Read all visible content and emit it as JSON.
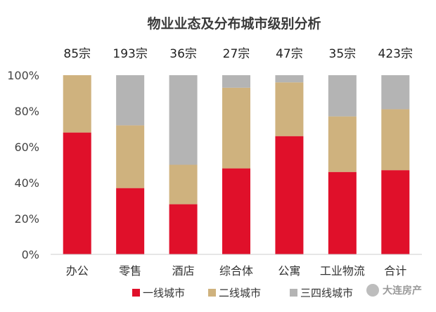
{
  "chart_data": {
    "type": "bar",
    "stacked": true,
    "percent": true,
    "title": "物业业态及分布城市级别分析",
    "categories": [
      "办公",
      "零售",
      "酒店",
      "综合体",
      "公寓",
      "工业物流",
      "合计"
    ],
    "totals": [
      "85宗",
      "193宗",
      "36宗",
      "27宗",
      "47宗",
      "35宗",
      "423宗"
    ],
    "yticks": [
      "0%",
      "20%",
      "40%",
      "60%",
      "80%",
      "100%"
    ],
    "ylim": [
      0,
      100
    ],
    "grid": false,
    "legend_position": "bottom",
    "series": [
      {
        "name": "一线城市",
        "color": "#e0102a",
        "values": [
          68,
          37,
          28,
          48,
          66,
          46,
          47
        ]
      },
      {
        "name": "二线城市",
        "color": "#cfb27e",
        "values": [
          32,
          35,
          22,
          45,
          30,
          31,
          34
        ]
      },
      {
        "name": "三四线城市",
        "color": "#b4b4b4",
        "values": [
          0,
          28,
          50,
          7,
          4,
          23,
          19
        ]
      }
    ]
  },
  "watermark": {
    "brand": "大连房产"
  }
}
